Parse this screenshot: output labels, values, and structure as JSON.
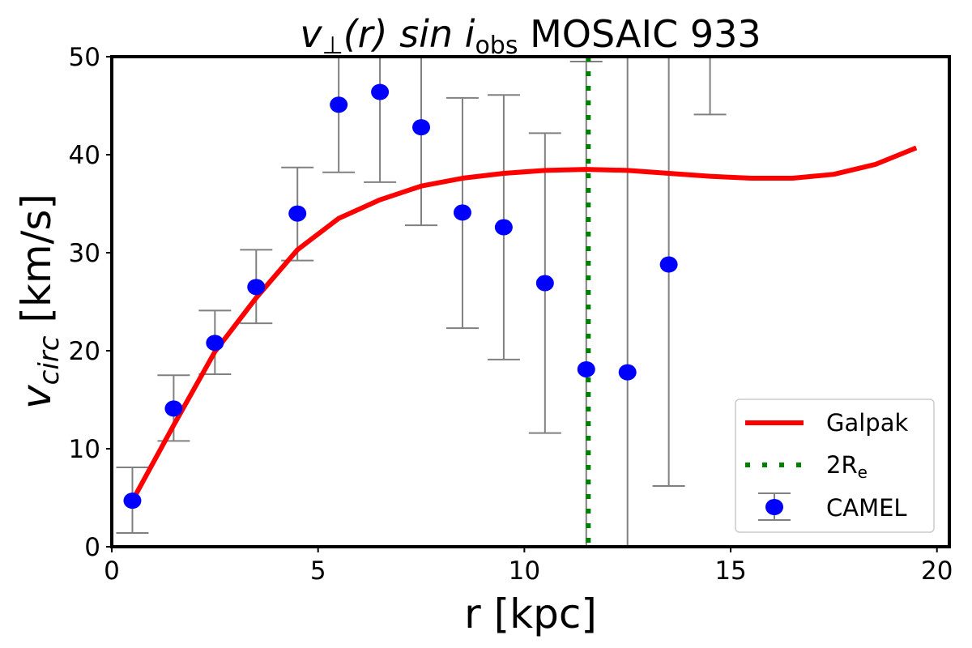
{
  "chart_data": {
    "type": "line",
    "title_main": "v",
    "title_sub": "⊥",
    "title_mid": "(r) sin ",
    "title_i": "i",
    "title_isub": "obs",
    "title_rest": " MOSAIC 933",
    "xlabel": "r [kpc]",
    "ylabel_main": "v",
    "ylabel_sub": "circ",
    "ylabel_rest": " [km/s]",
    "xlim": [
      0,
      20.3
    ],
    "ylim": [
      0,
      50
    ],
    "xticks": [
      0,
      5,
      10,
      15,
      20
    ],
    "yticks": [
      0,
      10,
      20,
      30,
      40,
      50
    ],
    "grid": false,
    "legend_position": "lower-right",
    "series": [
      {
        "name": "Galpak",
        "kind": "line",
        "color": "#ff0000",
        "x": [
          0.5,
          1.5,
          2.5,
          3.5,
          4.5,
          5.5,
          6.5,
          7.5,
          8.5,
          9.5,
          10.5,
          11.5,
          12.5,
          13.5,
          14.5,
          15.5,
          16.5,
          17.5,
          18.5,
          19.5
        ],
        "y": [
          4.7,
          12.4,
          19.9,
          25.4,
          30.3,
          33.5,
          35.4,
          36.8,
          37.6,
          38.1,
          38.4,
          38.5,
          38.4,
          38.1,
          37.8,
          37.6,
          37.6,
          38.0,
          39.0,
          40.7
        ]
      },
      {
        "name": "2R",
        "name_sub": "e",
        "kind": "vline",
        "color": "#008000",
        "x": 11.55
      },
      {
        "name": "CAMEL",
        "kind": "errorbar",
        "color": "#0000ff",
        "errcolor": "#808080",
        "x": [
          0.5,
          1.5,
          2.5,
          3.5,
          4.5,
          5.5,
          6.5,
          7.5,
          8.5,
          9.5,
          10.5,
          11.5,
          12.5,
          13.5,
          14.5
        ],
        "y": [
          4.7,
          14.1,
          20.8,
          26.5,
          34.0,
          45.1,
          46.4,
          42.8,
          34.1,
          32.6,
          26.9,
          18.1,
          17.8,
          28.8,
          null
        ],
        "lower": [
          1.4,
          10.8,
          17.6,
          22.8,
          29.2,
          38.2,
          37.2,
          32.8,
          22.3,
          19.1,
          11.6,
          -13.3,
          -20,
          6.2,
          44.1
        ],
        "upper": [
          8.1,
          17.5,
          24.1,
          30.3,
          38.7,
          52.0,
          55.6,
          52.8,
          45.8,
          46.1,
          42.2,
          49.5,
          56,
          51.4,
          60
        ]
      }
    ]
  }
}
